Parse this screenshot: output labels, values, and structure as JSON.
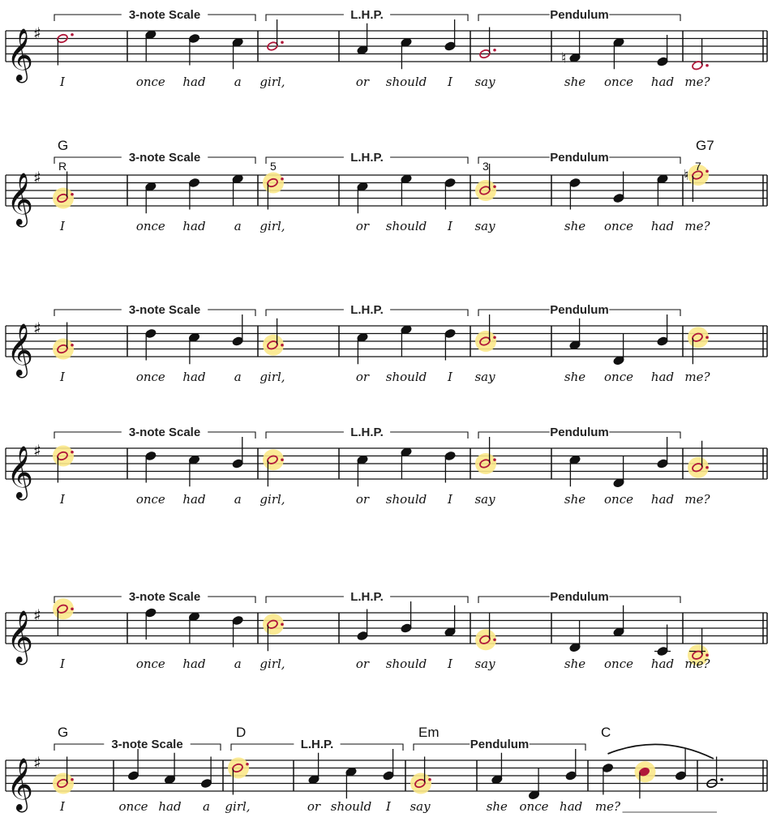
{
  "piece": {
    "key_signature": "G major (one sharp)",
    "colors": {
      "ink": "#111111",
      "target_note": "#b0183a",
      "highlight": "#fbe88a"
    },
    "lines": [
      {
        "chord_markings": [],
        "brackets": [
          {
            "label": "3-note Scale"
          },
          {
            "label": "L.H.P."
          },
          {
            "label": "Pendulum"
          }
        ],
        "lyrics": [
          "I",
          "once",
          "had",
          "a",
          "girl,",
          "or",
          "should",
          "I",
          "say",
          "she",
          "once",
          "had",
          "me?"
        ],
        "measures": [
          [
            {
              "pitch": "D5",
              "duration": "dotted-half",
              "target": true,
              "highlight": false
            }
          ],
          [
            {
              "pitch": "E5",
              "duration": "quarter"
            },
            {
              "pitch": "D5",
              "duration": "quarter"
            },
            {
              "pitch": "C5",
              "duration": "quarter"
            }
          ],
          [
            {
              "pitch": "B4",
              "duration": "dotted-half",
              "target": true,
              "highlight": false
            }
          ],
          [
            {
              "pitch": "A4",
              "duration": "quarter"
            },
            {
              "pitch": "C5",
              "duration": "quarter"
            },
            {
              "pitch": "B4",
              "duration": "quarter"
            }
          ],
          [
            {
              "pitch": "G4",
              "duration": "dotted-half",
              "target": true,
              "highlight": false
            }
          ],
          [
            {
              "pitch": "F4",
              "duration": "quarter",
              "accidental": "natural"
            },
            {
              "pitch": "C5",
              "duration": "quarter"
            },
            {
              "pitch": "E4",
              "duration": "quarter"
            }
          ],
          [
            {
              "pitch": "D4",
              "duration": "dotted-half",
              "target": true,
              "highlight": false
            }
          ]
        ]
      },
      {
        "chord_markings": [
          {
            "measure": 0,
            "label": "G"
          },
          {
            "measure": 6,
            "label": "G7"
          }
        ],
        "degree_markings": [
          {
            "measure": 0,
            "label": "R"
          },
          {
            "measure": 2,
            "label": "5"
          },
          {
            "measure": 4,
            "label": "3"
          },
          {
            "measure": 6,
            "label": "7"
          }
        ],
        "brackets": [
          {
            "label": "3-note Scale"
          },
          {
            "label": "L.H.P."
          },
          {
            "label": "Pendulum"
          }
        ],
        "lyrics": [
          "I",
          "once",
          "had",
          "a",
          "girl,",
          "or",
          "should",
          "I",
          "say",
          "she",
          "once",
          "had",
          "me?"
        ],
        "measures": [
          [
            {
              "pitch": "G4",
              "duration": "dotted-half",
              "target": true,
              "highlight": true
            }
          ],
          [
            {
              "pitch": "C5",
              "duration": "quarter"
            },
            {
              "pitch": "D5",
              "duration": "quarter"
            },
            {
              "pitch": "E5",
              "duration": "quarter"
            }
          ],
          [
            {
              "pitch": "D5",
              "duration": "dotted-half",
              "target": true,
              "highlight": true
            }
          ],
          [
            {
              "pitch": "C5",
              "duration": "quarter"
            },
            {
              "pitch": "E5",
              "duration": "quarter"
            },
            {
              "pitch": "D5",
              "duration": "quarter"
            }
          ],
          [
            {
              "pitch": "B4",
              "duration": "dotted-half",
              "target": true,
              "highlight": true
            }
          ],
          [
            {
              "pitch": "D5",
              "duration": "quarter"
            },
            {
              "pitch": "G4",
              "duration": "quarter"
            },
            {
              "pitch": "E5",
              "duration": "quarter"
            }
          ],
          [
            {
              "pitch": "F5",
              "duration": "dotted-half",
              "target": true,
              "highlight": true,
              "accidental": "natural"
            }
          ]
        ]
      },
      {
        "chord_markings": [],
        "brackets": [
          {
            "label": "3-note Scale"
          },
          {
            "label": "L.H.P."
          },
          {
            "label": "Pendulum"
          }
        ],
        "lyrics": [
          "I",
          "once",
          "had",
          "a",
          "girl,",
          "or",
          "should",
          "I",
          "say",
          "she",
          "once",
          "had",
          "me?"
        ],
        "measures": [
          [
            {
              "pitch": "G4",
              "duration": "dotted-half",
              "target": true,
              "highlight": true
            }
          ],
          [
            {
              "pitch": "D5",
              "duration": "quarter"
            },
            {
              "pitch": "C5",
              "duration": "quarter"
            },
            {
              "pitch": "B4",
              "duration": "quarter"
            }
          ],
          [
            {
              "pitch": "A4",
              "duration": "dotted-half",
              "target": true,
              "highlight": true
            }
          ],
          [
            {
              "pitch": "C5",
              "duration": "quarter"
            },
            {
              "pitch": "E5",
              "duration": "quarter"
            },
            {
              "pitch": "D5",
              "duration": "quarter"
            }
          ],
          [
            {
              "pitch": "B4",
              "duration": "dotted-half",
              "target": true,
              "highlight": true
            }
          ],
          [
            {
              "pitch": "A4",
              "duration": "quarter"
            },
            {
              "pitch": "D4",
              "duration": "quarter"
            },
            {
              "pitch": "B4",
              "duration": "quarter"
            }
          ],
          [
            {
              "pitch": "C5",
              "duration": "dotted-half",
              "target": true,
              "highlight": true
            }
          ]
        ]
      },
      {
        "chord_markings": [],
        "brackets": [
          {
            "label": "3-note Scale"
          },
          {
            "label": "L.H.P."
          },
          {
            "label": "Pendulum"
          }
        ],
        "lyrics": [
          "I",
          "once",
          "had",
          "a",
          "girl,",
          "or",
          "should",
          "I",
          "say",
          "she",
          "once",
          "had",
          "me?"
        ],
        "measures": [
          [
            {
              "pitch": "D5",
              "duration": "dotted-half",
              "target": true,
              "highlight": true
            }
          ],
          [
            {
              "pitch": "D5",
              "duration": "quarter"
            },
            {
              "pitch": "C5",
              "duration": "quarter"
            },
            {
              "pitch": "B4",
              "duration": "quarter"
            }
          ],
          [
            {
              "pitch": "C5",
              "duration": "dotted-half",
              "target": true,
              "highlight": true
            }
          ],
          [
            {
              "pitch": "C5",
              "duration": "quarter"
            },
            {
              "pitch": "E5",
              "duration": "quarter"
            },
            {
              "pitch": "D5",
              "duration": "quarter"
            }
          ],
          [
            {
              "pitch": "B4",
              "duration": "dotted-half",
              "target": true,
              "highlight": true
            }
          ],
          [
            {
              "pitch": "C5",
              "duration": "quarter"
            },
            {
              "pitch": "D4",
              "duration": "quarter"
            },
            {
              "pitch": "B4",
              "duration": "quarter"
            }
          ],
          [
            {
              "pitch": "A4",
              "duration": "dotted-half",
              "target": true,
              "highlight": true
            }
          ]
        ]
      },
      {
        "chord_markings": [],
        "brackets": [
          {
            "label": "3-note Scale"
          },
          {
            "label": "L.H.P."
          },
          {
            "label": "Pendulum"
          }
        ],
        "lyrics": [
          "I",
          "once",
          "had",
          "a",
          "girl,",
          "or",
          "should",
          "I",
          "say",
          "she",
          "once",
          "had",
          "me?"
        ],
        "measures": [
          [
            {
              "pitch": "G5",
              "duration": "dotted-half",
              "target": true,
              "highlight": true
            }
          ],
          [
            {
              "pitch": "F5",
              "duration": "quarter"
            },
            {
              "pitch": "E5",
              "duration": "quarter"
            },
            {
              "pitch": "D5",
              "duration": "quarter"
            }
          ],
          [
            {
              "pitch": "C5",
              "duration": "dotted-half",
              "target": true,
              "highlight": true
            }
          ],
          [
            {
              "pitch": "G4",
              "duration": "quarter"
            },
            {
              "pitch": "B4",
              "duration": "quarter"
            },
            {
              "pitch": "A4",
              "duration": "quarter"
            }
          ],
          [
            {
              "pitch": "F4",
              "duration": "dotted-half",
              "target": true,
              "highlight": true
            }
          ],
          [
            {
              "pitch": "D4",
              "duration": "quarter"
            },
            {
              "pitch": "A4",
              "duration": "quarter"
            },
            {
              "pitch": "C4",
              "duration": "quarter"
            }
          ],
          [
            {
              "pitch": "B3",
              "duration": "dotted-half",
              "target": true,
              "highlight": true
            }
          ]
        ]
      },
      {
        "chord_markings": [
          {
            "measure": 0,
            "label": "G"
          },
          {
            "measure": 2,
            "label": "D"
          },
          {
            "measure": 4,
            "label": "Em"
          },
          {
            "measure": 6,
            "label": "C"
          }
        ],
        "brackets": [
          {
            "label": "3-note Scale"
          },
          {
            "label": "L.H.P."
          },
          {
            "label": "Pendulum"
          }
        ],
        "lyrics": [
          "I",
          "once",
          "had",
          "a",
          "girl,",
          "or",
          "should",
          "I",
          "say",
          "she",
          "once",
          "had",
          "me?"
        ],
        "measures": [
          [
            {
              "pitch": "G4",
              "duration": "dotted-half",
              "target": true,
              "highlight": true
            }
          ],
          [
            {
              "pitch": "B4",
              "duration": "quarter"
            },
            {
              "pitch": "A4",
              "duration": "quarter"
            },
            {
              "pitch": "G4",
              "duration": "quarter"
            }
          ],
          [
            {
              "pitch": "D5",
              "duration": "dotted-half",
              "target": true,
              "highlight": true
            }
          ],
          [
            {
              "pitch": "A4",
              "duration": "quarter"
            },
            {
              "pitch": "C5",
              "duration": "quarter"
            },
            {
              "pitch": "B4",
              "duration": "quarter"
            }
          ],
          [
            {
              "pitch": "G4",
              "duration": "dotted-half",
              "target": true,
              "highlight": true
            }
          ],
          [
            {
              "pitch": "A4",
              "duration": "quarter"
            },
            {
              "pitch": "D4",
              "duration": "quarter"
            },
            {
              "pitch": "B4",
              "duration": "quarter"
            }
          ],
          [
            {
              "pitch": "D5",
              "duration": "quarter"
            },
            {
              "pitch": "C5",
              "duration": "quarter",
              "target": true,
              "highlight": true
            },
            {
              "pitch": "B4",
              "duration": "quarter"
            }
          ],
          [
            {
              "pitch": "G4",
              "duration": "dotted-half"
            }
          ]
        ],
        "slur": {
          "from_measure": 6,
          "to_measure": 7
        },
        "extender_after_last_lyric": true
      }
    ]
  }
}
